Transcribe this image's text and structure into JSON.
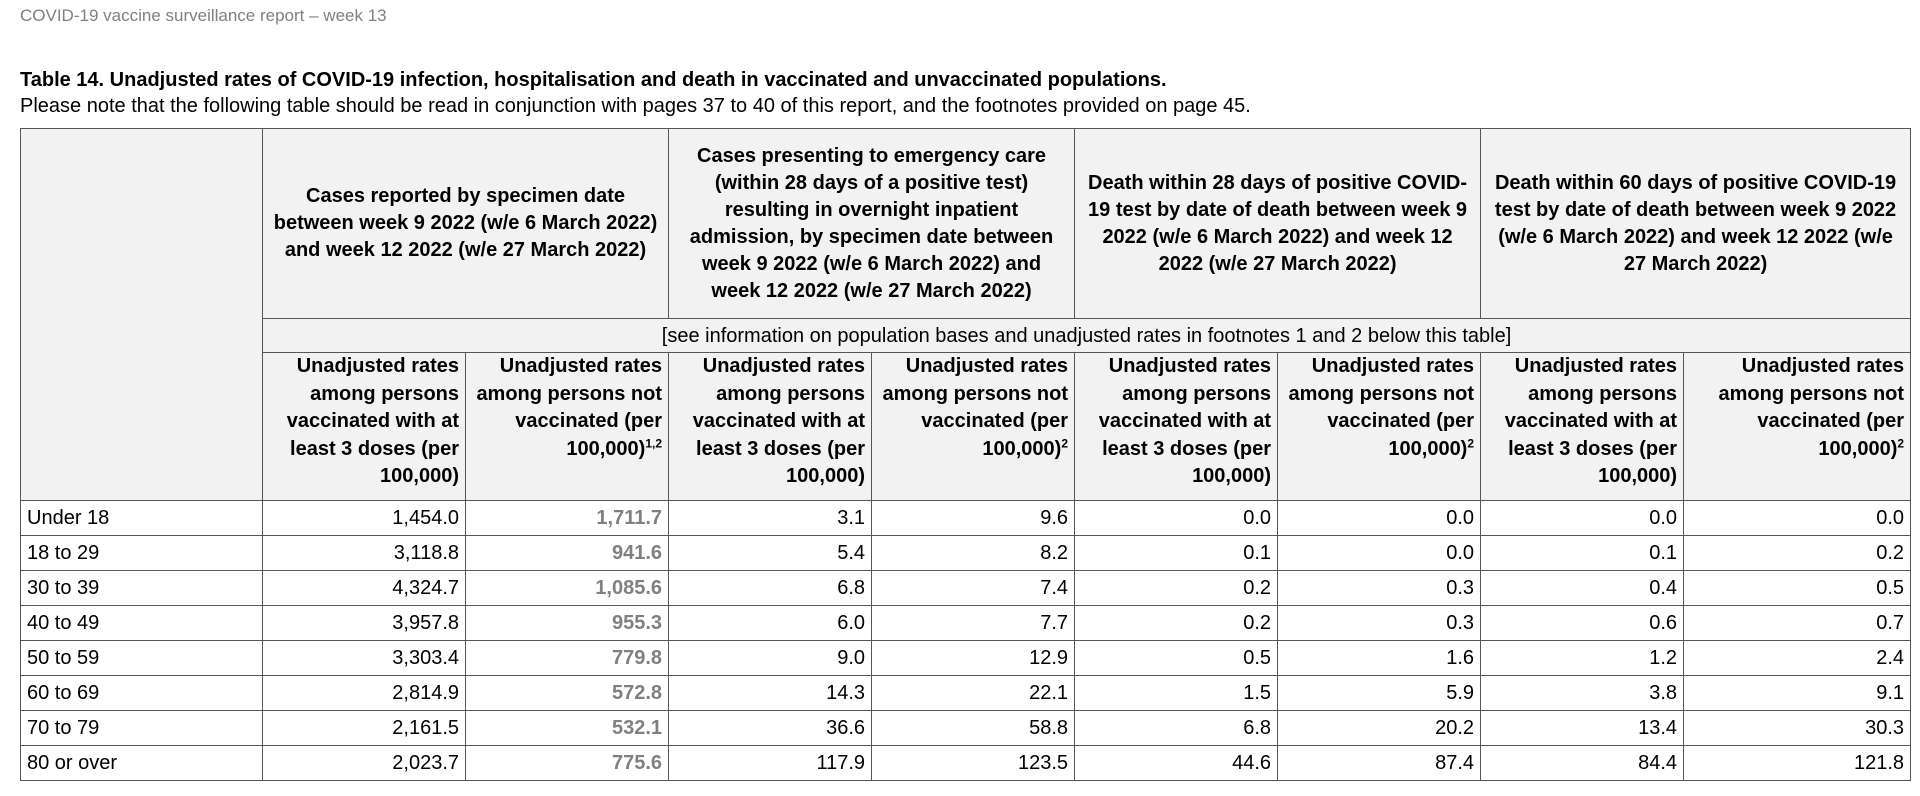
{
  "running_header": "COVID-19 vaccine surveillance report – week 13",
  "caption": {
    "title": "Table 14. Unadjusted rates of COVID-19 infection, hospitalisation and death in vaccinated and unvaccinated populations.",
    "note": "Please note that the following table should be read in conjunction with pages 37 to 40 of this report, and the footnotes provided on page 45."
  },
  "table": {
    "group_headers": [
      "Cases reported by specimen date between week 9 2022 (w/e 6 March 2022) and week 12 2022 (w/e 27 March 2022)",
      "Cases presenting to emergency care (within 28 days of a positive test) resulting in overnight inpatient admission, by specimen date between week 9 2022 (w/e 6 March 2022) and week 12 2022 (w/e 27 March 2022)",
      "Death within 28 days of positive COVID-19 test by date of death between week 9 2022 (w/e 6 March 2022) and week 12 2022 (w/e 27 March 2022)",
      "Death within 60 days of positive COVID-19 test by date of death between week 9 2022 (w/e 6 March 2022) and week 12 2022 (w/e 27 March 2022)"
    ],
    "population_note": "[see information on population bases and unadjusted rates in footnotes 1 and 2 below this table]",
    "column_headers": [
      {
        "text": "Unadjusted rates among persons vaccinated with at least 3 doses (per 100,000)",
        "sup": ""
      },
      {
        "text": "Unadjusted rates among persons not vaccinated (per 100,000)",
        "sup": "1,2"
      },
      {
        "text": "Unadjusted rates among persons vaccinated with at least 3 doses (per 100,000)",
        "sup": ""
      },
      {
        "text": "Unadjusted rates among persons not vaccinated (per 100,000)",
        "sup": "2"
      },
      {
        "text": "Unadjusted rates among persons vaccinated with at least 3 doses (per 100,000)",
        "sup": ""
      },
      {
        "text": "Unadjusted rates among persons not vaccinated (per 100,000)",
        "sup": "2"
      },
      {
        "text": "Unadjusted rates among persons vaccinated with at least 3 doses (per 100,000)",
        "sup": ""
      },
      {
        "text": "Unadjusted rates among persons not vaccinated (per 100,000)",
        "sup": "2"
      }
    ],
    "rows": [
      {
        "label": "Under 18",
        "values": [
          "1,454.0",
          "1,711.7",
          "3.1",
          "9.6",
          "0.0",
          "0.0",
          "0.0",
          "0.0"
        ]
      },
      {
        "label": "18 to 29",
        "values": [
          "3,118.8",
          "941.6",
          "5.4",
          "8.2",
          "0.1",
          "0.0",
          "0.1",
          "0.2"
        ]
      },
      {
        "label": "30 to 39",
        "values": [
          "4,324.7",
          "1,085.6",
          "6.8",
          "7.4",
          "0.2",
          "0.3",
          "0.4",
          "0.5"
        ]
      },
      {
        "label": "40 to 49",
        "values": [
          "3,957.8",
          "955.3",
          "6.0",
          "7.7",
          "0.2",
          "0.3",
          "0.6",
          "0.7"
        ]
      },
      {
        "label": "50 to 59",
        "values": [
          "3,303.4",
          "779.8",
          "9.0",
          "12.9",
          "0.5",
          "1.6",
          "1.2",
          "2.4"
        ]
      },
      {
        "label": "60 to 69",
        "values": [
          "2,814.9",
          "572.8",
          "14.3",
          "22.1",
          "1.5",
          "5.9",
          "3.8",
          "9.1"
        ]
      },
      {
        "label": "70 to 79",
        "values": [
          "2,161.5",
          "532.1",
          "36.6",
          "58.8",
          "6.8",
          "20.2",
          "13.4",
          "30.3"
        ]
      },
      {
        "label": "80 or over",
        "values": [
          "2,023.7",
          "775.6",
          "117.9",
          "123.5",
          "44.6",
          "87.4",
          "84.4",
          "121.8"
        ]
      }
    ],
    "highlight_color": "#808080",
    "header_background": "#f2f2f2"
  }
}
